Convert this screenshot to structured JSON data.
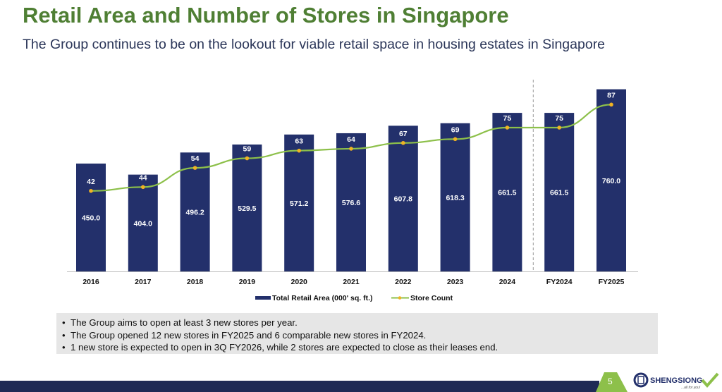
{
  "header": {
    "title": "Retail Area and Number of Stores in Singapore",
    "subtitle": "The Group continues to be on the lookout for viable retail space in housing estates in Singapore"
  },
  "chart_data": {
    "type": "bar+line",
    "categories": [
      "2016",
      "2017",
      "2018",
      "2019",
      "2020",
      "2021",
      "2022",
      "2023",
      "2024",
      "FY2024",
      "FY2025"
    ],
    "series": [
      {
        "name": "Total Retail Area (000' sq. ft.)",
        "type": "bar",
        "values": [
          450.0,
          404.0,
          496.2,
          529.5,
          571.2,
          576.6,
          607.8,
          618.3,
          661.5,
          661.5,
          760.0
        ],
        "color": "#23306b"
      },
      {
        "name": "Store Count",
        "type": "line",
        "values": [
          42,
          44,
          54,
          59,
          63,
          64,
          67,
          69,
          75,
          75,
          87
        ],
        "color": "#8dc04a",
        "marker_color": "#f0b323"
      }
    ],
    "bar_ylim": [
      0,
      800
    ],
    "line_ylim": [
      0,
      100
    ],
    "grid": false,
    "legend": "bottom",
    "divider_after": "2024"
  },
  "bullets": [
    "The Group aims to open at least 3 new stores per year.",
    "The Group opened 12 new stores in FY2025 and 6 comparable new stores in FY2024.",
    "1 new store is expected to open in 3Q FY2026, while 2 stores are expected to close as their leases end."
  ],
  "footer": {
    "page_number": "5",
    "logo_text": "SHENGSIONG",
    "logo_tagline": "...all for you!",
    "accent": "#8dc04a",
    "bar_color": "#1f2a55"
  }
}
